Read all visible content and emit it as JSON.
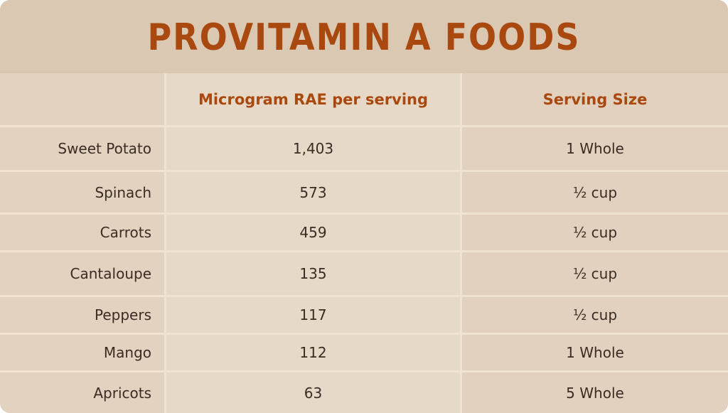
{
  "chart_data": {
    "type": "table",
    "title": "PROVITAMIN A FOODS",
    "columns": [
      "",
      "Microgram RAE per serving",
      "Serving Size"
    ],
    "rows": [
      {
        "food": "Sweet Potato",
        "rae": "1,403",
        "serving": "1 Whole"
      },
      {
        "food": "Spinach",
        "rae": "573",
        "serving": "½ cup"
      },
      {
        "food": "Carrots",
        "rae": "459",
        "serving": "½ cup"
      },
      {
        "food": "Cantaloupe",
        "rae": "135",
        "serving": "½ cup"
      },
      {
        "food": "Peppers",
        "rae": "117",
        "serving": "½ cup"
      },
      {
        "food": "Mango",
        "rae": "112",
        "serving": "1 Whole"
      },
      {
        "food": "Apricots",
        "rae": "63",
        "serving": "5 Whole"
      }
    ]
  },
  "colors": {
    "title": "#a9490f",
    "header_text": "#a9490f",
    "body_text": "#3a2c22",
    "background": "#decebb",
    "divider": "#f0e3d2"
  }
}
